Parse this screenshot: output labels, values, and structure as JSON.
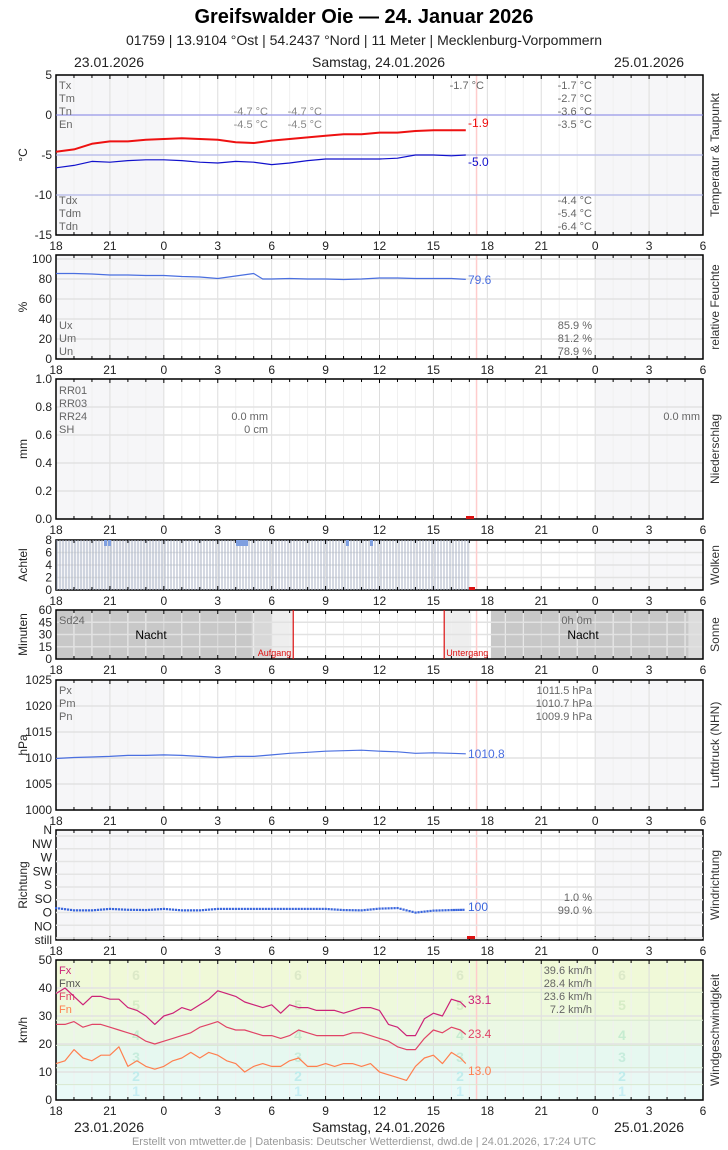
{
  "header": {
    "title": "Greifswalder Oie  —  24. Januar 2026",
    "subtitle": "01759  |  13.9104 °Ost  |  54.2437 °Nord  |  11 Meter  |  Mecklenburg-Vorpommern",
    "date_left": "23.01.2026",
    "date_center": "Samstag, 24.01.2026",
    "date_right": "25.01.2026"
  },
  "footer": {
    "date_left": "23.01.2026",
    "date_center": "Samstag, 24.01.2026",
    "date_right": "25.01.2026",
    "credit": "Erstellt von mtwetter.de | Datenbasis: Deutscher Wetterdienst, dwd.de | 24.01.2026, 17:24 UTC"
  },
  "x_axis": {
    "ticks": [
      "18",
      "21",
      "0",
      "3",
      "6",
      "9",
      "12",
      "15",
      "18",
      "21",
      "0",
      "3",
      "6"
    ]
  },
  "colors": {
    "temperature": "#ee1111",
    "dewpoint": "#1111cc",
    "humidity": "#4a6fe0",
    "pressure": "#4a6fe0",
    "wind_dir": "#3a66dd",
    "fx": "#cc2277",
    "fm": "#e04466",
    "fn": "#ff7f4f",
    "now_marker": "#ffcccc",
    "sun_line": "#dd1111",
    "stats_text": "#666666"
  },
  "chart_data": [
    {
      "id": "temperature",
      "type": "line",
      "title": "Temperatur & Taupunkt",
      "ylabel": "°C",
      "ylim": [
        -15,
        5
      ],
      "yticks": [
        "5",
        "0",
        "-5",
        "-10",
        "-15"
      ],
      "xlabel": "",
      "legend_top": [
        "Tx",
        "Tm",
        "Tn",
        "En"
      ],
      "legend_bottom": [
        "Tdx",
        "Tdm",
        "Tdn"
      ],
      "midcol_top": [
        [
          "-4.7 °C",
          "-4.7 °C"
        ],
        [
          "-4.5 °C",
          "-4.5 °C"
        ]
      ],
      "top_label_mid": "-1.7 °C",
      "stats_top": [
        "-1.7 °C",
        "-2.7 °C",
        "-3.6 °C",
        "-3.5 °C"
      ],
      "stats_bottom": [
        "-4.4 °C",
        "-5.4 °C",
        "-6.4 °C"
      ],
      "series": [
        {
          "name": "Temperatur",
          "last_label": "-1.9",
          "x": [
            18,
            19,
            20,
            21,
            22,
            23,
            0,
            1,
            2,
            3,
            4,
            5,
            6,
            7,
            8,
            9,
            10,
            11,
            12,
            13,
            14,
            15,
            16,
            16.8
          ],
          "values": [
            -4.6,
            -4.3,
            -3.6,
            -3.3,
            -3.3,
            -3.1,
            -3.0,
            -2.9,
            -3.0,
            -3.1,
            -3.4,
            -3.5,
            -3.2,
            -3.0,
            -2.8,
            -2.6,
            -2.4,
            -2.4,
            -2.2,
            -2.2,
            -2.0,
            -1.9,
            -1.9,
            -1.9
          ]
        },
        {
          "name": "Taupunkt",
          "last_label": "-5.0",
          "x": [
            18,
            19,
            20,
            21,
            22,
            23,
            0,
            1,
            2,
            3,
            4,
            5,
            6,
            7,
            8,
            9,
            10,
            11,
            12,
            13,
            14,
            15,
            16,
            16.8
          ],
          "values": [
            -6.6,
            -6.3,
            -5.8,
            -5.9,
            -5.7,
            -5.6,
            -5.6,
            -5.7,
            -5.9,
            -6.0,
            -5.8,
            -5.9,
            -6.2,
            -6.0,
            -5.7,
            -5.5,
            -5.5,
            -5.5,
            -5.5,
            -5.4,
            -5.0,
            -5.0,
            -5.1,
            -5.0
          ]
        }
      ]
    },
    {
      "id": "humidity",
      "type": "line",
      "title": "relative Feuchte",
      "ylabel": "%",
      "ylim": [
        0,
        100
      ],
      "yticks": [
        "100",
        "80",
        "60",
        "40",
        "20",
        "0"
      ],
      "legend": [
        "Ux",
        "Um",
        "Un"
      ],
      "stats": [
        "85.9 %",
        "81.2 %",
        "78.9 %"
      ],
      "series": [
        {
          "name": "relative Feuchte",
          "last_label": "79.6",
          "x": [
            18,
            19,
            20,
            21,
            22,
            23,
            0,
            1,
            2,
            3,
            4,
            5,
            5.5,
            6,
            7,
            8,
            9,
            10,
            11,
            12,
            13,
            14,
            15,
            16,
            16.8
          ],
          "values": [
            85.5,
            85.5,
            85,
            84,
            84,
            83.5,
            83.5,
            82.5,
            82,
            80.5,
            83,
            85.5,
            80,
            80,
            80.5,
            80,
            80,
            79.5,
            80,
            81,
            81,
            80.5,
            80.5,
            80.5,
            79.6
          ]
        }
      ]
    },
    {
      "id": "precipitation",
      "type": "bar",
      "title": "Niederschlag",
      "ylabel": "mm",
      "ylim": [
        0,
        1.0
      ],
      "yticks": [
        "1.0",
        "0.8",
        "0.6",
        "0.4",
        "0.2",
        "0.0"
      ],
      "legend": [
        "RR01",
        "RR03",
        "RR24",
        "SH"
      ],
      "mid_values": [
        "0.0 mm",
        "0 cm"
      ],
      "right_value": "0.0 mm",
      "series": [
        {
          "name": "RR",
          "values": []
        }
      ]
    },
    {
      "id": "clouds",
      "type": "bar",
      "title": "Wolken",
      "ylabel": "Achtel",
      "ylim": [
        0,
        8
      ],
      "yticks": [
        "8",
        "6",
        "4",
        "2",
        "0"
      ],
      "series": [
        {
          "name": "Bedeckung",
          "note": "overcast 8/8 throughout 18h–17h",
          "values": [
            8
          ]
        }
      ]
    },
    {
      "id": "sunshine",
      "type": "area",
      "title": "Sonne",
      "ylabel": "Minuten",
      "ylim": [
        0,
        60
      ],
      "yticks": [
        "60",
        "45",
        "30",
        "15",
        "0"
      ],
      "legend": [
        "Sd24"
      ],
      "stat": "0h 0m",
      "night_label": "Nacht",
      "sunrise_label": "Aufgang",
      "sunset_label": "Untergang",
      "sunrise_hour": 7.2,
      "sunset_hour": 15.6
    },
    {
      "id": "pressure",
      "type": "line",
      "title": "Luftdruck (NHN)",
      "ylabel": "hPa",
      "ylim": [
        1000,
        1025
      ],
      "yticks": [
        "1025",
        "1020",
        "1015",
        "1010",
        "1005",
        "1000"
      ],
      "legend": [
        "Px",
        "Pm",
        "Pn"
      ],
      "stats": [
        "1011.5 hPa",
        "1010.7 hPa",
        "1009.9 hPa"
      ],
      "series": [
        {
          "name": "Luftdruck",
          "last_label": "1010.8",
          "x": [
            18,
            19,
            20,
            21,
            22,
            23,
            0,
            1,
            2,
            3,
            4,
            5,
            6,
            7,
            8,
            9,
            10,
            11,
            12,
            13,
            14,
            15,
            16,
            16.8
          ],
          "values": [
            1009.9,
            1010.1,
            1010.2,
            1010.3,
            1010.5,
            1010.5,
            1010.6,
            1010.5,
            1010.3,
            1010.1,
            1010.3,
            1010.3,
            1010.6,
            1010.9,
            1011.1,
            1011.3,
            1011.4,
            1011.5,
            1011.3,
            1011.2,
            1010.9,
            1011.0,
            1010.9,
            1010.8
          ]
        }
      ]
    },
    {
      "id": "wind_direction",
      "type": "scatter",
      "title": "Windrichtung",
      "ylabel": "Richtung",
      "yticks": [
        "N",
        "NW",
        "W",
        "SW",
        "S",
        "SO",
        "O",
        "NO",
        "still"
      ],
      "stats": [
        "1.0 %",
        "99.0 %"
      ],
      "series": [
        {
          "name": "Richtung",
          "last_label": "100",
          "x": [
            18,
            19,
            20,
            21,
            22,
            23,
            0,
            1,
            2,
            3,
            4,
            5,
            6,
            7,
            8,
            9,
            10,
            11,
            12,
            13,
            14,
            15,
            16,
            16.8
          ],
          "values": [
            106,
            98,
            98,
            103,
            100,
            99,
            103,
            98,
            98,
            103,
            103,
            103,
            103,
            103,
            103,
            103,
            99,
            98,
            104,
            106,
            90,
            97,
            99,
            100
          ]
        }
      ]
    },
    {
      "id": "wind_speed",
      "type": "line",
      "title": "Windgeschwindigkeit",
      "ylabel": "km/h",
      "ylim": [
        0,
        50
      ],
      "yticks": [
        "50",
        "40",
        "30",
        "20",
        "10",
        "0"
      ],
      "legend": [
        "Fx",
        "Fmx",
        "Fm",
        "Fn"
      ],
      "stats": [
        "39.6 km/h",
        "28.4 km/h",
        "23.6 km/h",
        "7.2 km/h"
      ],
      "beaufort_labels": [
        "6",
        "5",
        "4",
        "3",
        "2",
        "1"
      ],
      "series": [
        {
          "name": "Fx",
          "last_label": "33.1",
          "x": [
            18,
            18.5,
            19,
            19.5,
            20,
            20.5,
            21,
            21.5,
            22,
            22.5,
            23,
            23.5,
            0,
            0.5,
            1,
            1.5,
            2,
            2.5,
            3,
            3.5,
            4,
            4.5,
            5,
            5.5,
            6,
            6.5,
            7,
            7.5,
            8,
            8.5,
            9,
            9.5,
            10,
            10.5,
            11,
            11.5,
            12,
            12.5,
            13,
            13.5,
            14,
            14.5,
            15,
            15.5,
            16,
            16.5,
            16.8
          ],
          "values": [
            38,
            40,
            37,
            34,
            37,
            37,
            36,
            36,
            33,
            32,
            30,
            27,
            30,
            31,
            33,
            32,
            34,
            36,
            39,
            38,
            37,
            35,
            34,
            33,
            34,
            31,
            34,
            33,
            33,
            32,
            32,
            32,
            31,
            32,
            33,
            33,
            32,
            27,
            26,
            23,
            23,
            29,
            31,
            30,
            36,
            35,
            33.1
          ]
        },
        {
          "name": "Fm",
          "last_label": "23.4",
          "x": [
            18,
            18.5,
            19,
            19.5,
            20,
            20.5,
            21,
            21.5,
            22,
            22.5,
            23,
            23.5,
            0,
            0.5,
            1,
            1.5,
            2,
            2.5,
            3,
            3.5,
            4,
            4.5,
            5,
            5.5,
            6,
            6.5,
            7,
            7.5,
            8,
            8.5,
            9,
            9.5,
            10,
            10.5,
            11,
            11.5,
            12,
            12.5,
            13,
            13.5,
            14,
            14.5,
            15,
            15.5,
            16,
            16.5,
            16.8
          ],
          "values": [
            27,
            27,
            28,
            26,
            27,
            27,
            26,
            25,
            24,
            23,
            21,
            20,
            21,
            22,
            23,
            24,
            26,
            27,
            28,
            26,
            25,
            25,
            24,
            23,
            23,
            22,
            23,
            25,
            24,
            23,
            23,
            23,
            23,
            24,
            24,
            23,
            22,
            21,
            19,
            18,
            18,
            22,
            25,
            24,
            26,
            25,
            23.4
          ]
        },
        {
          "name": "Fn",
          "last_label": "13.0",
          "x": [
            18,
            18.5,
            19,
            19.5,
            20,
            20.5,
            21,
            21.5,
            22,
            22.5,
            23,
            23.5,
            0,
            0.5,
            1,
            1.5,
            2,
            2.5,
            3,
            3.5,
            4,
            4.5,
            5,
            5.5,
            6,
            6.5,
            7,
            7.5,
            8,
            8.5,
            9,
            9.5,
            10,
            10.5,
            11,
            11.5,
            12,
            12.5,
            13,
            13.5,
            14,
            14.5,
            15,
            15.5,
            16,
            16.5,
            16.8
          ],
          "values": [
            13,
            14,
            18,
            15,
            14,
            16,
            16,
            19,
            12,
            14,
            12,
            11,
            12,
            14,
            15,
            17,
            15,
            17,
            16,
            14,
            13,
            10,
            12,
            13,
            12,
            12,
            14,
            15,
            12,
            12,
            13,
            12,
            13,
            13,
            12,
            13,
            10,
            9,
            8,
            7,
            12,
            15,
            16,
            13,
            17,
            15,
            13.0
          ]
        }
      ]
    }
  ]
}
